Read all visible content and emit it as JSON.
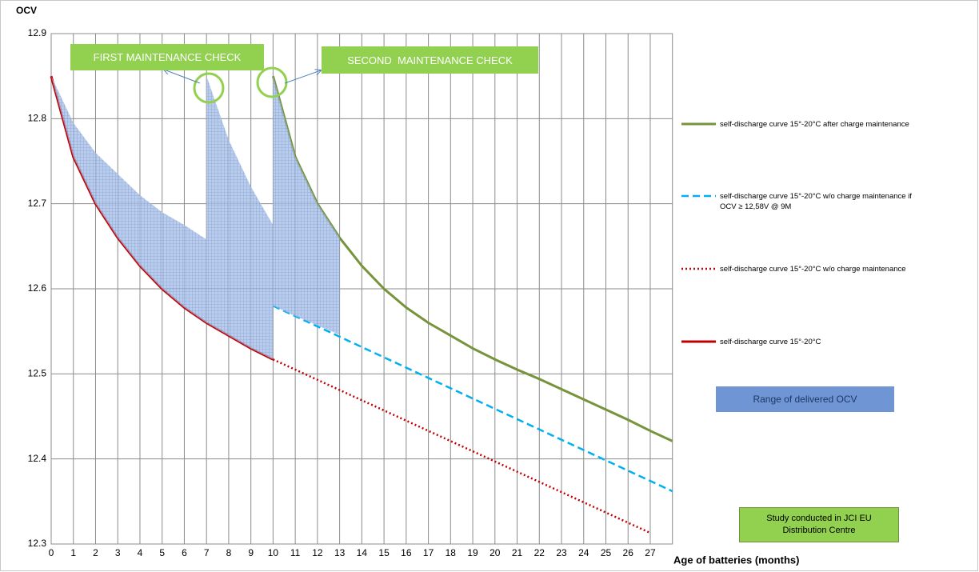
{
  "chart_data": {
    "type": "line",
    "y_label": "OCV",
    "x_label": "Age of batteries (months)",
    "xlim": [
      0,
      28
    ],
    "xticks": [
      0,
      1,
      2,
      3,
      4,
      5,
      6,
      7,
      8,
      9,
      10,
      11,
      12,
      13,
      14,
      15,
      16,
      17,
      18,
      19,
      20,
      21,
      22,
      23,
      24,
      25,
      26,
      27
    ],
    "ylim": [
      12.3,
      12.9
    ],
    "yticks": [
      12.3,
      12.4,
      12.5,
      12.6,
      12.7,
      12.8,
      12.9
    ],
    "grid": true,
    "series": [
      {
        "name": "self-discharge curve 15°-20°C after charge maintenance",
        "color": "#77933c",
        "style": "solid",
        "x": [
          10,
          11,
          12,
          13,
          14,
          15,
          16,
          17,
          18,
          19,
          20,
          21,
          22,
          23,
          24,
          25,
          26,
          27,
          28
        ],
        "values": [
          12.85,
          12.755,
          12.7,
          12.66,
          12.627,
          12.6,
          12.578,
          12.56,
          12.545,
          12.53,
          12.517,
          12.505,
          12.494,
          12.482,
          12.47,
          12.458,
          12.446,
          12.433,
          12.421
        ]
      },
      {
        "name": "self-discharge curve 15°-20°C w/o charge maintenance if OCV ≥ 12,58V @ 9M",
        "color": "#00b0f0",
        "style": "dashed",
        "x": [
          10,
          28
        ],
        "values": [
          12.58,
          12.362
        ]
      },
      {
        "name": "self-discharge curve 15°-20°C w/o charge maintenance",
        "color": "#c00000",
        "style": "dotted",
        "x": [
          10,
          27
        ],
        "values": [
          12.517,
          12.313
        ]
      },
      {
        "name": "self-discharge curve 15°-20°C",
        "color": "#c00000",
        "style": "solid",
        "x": [
          0,
          1,
          2,
          3,
          4,
          5,
          6,
          7,
          8,
          9,
          10
        ],
        "values": [
          12.85,
          12.755,
          12.7,
          12.66,
          12.627,
          12.6,
          12.578,
          12.56,
          12.545,
          12.53,
          12.517
        ]
      },
      {
        "name": "Range of delivered OCV",
        "color": "#6f95d4",
        "style": "area",
        "x": [
          0,
          1,
          2,
          3,
          4,
          5,
          6,
          7,
          7,
          8,
          9,
          10,
          10,
          11,
          12,
          13
        ],
        "upper": [
          12.85,
          12.795,
          12.76,
          12.735,
          12.71,
          12.69,
          12.675,
          12.658,
          12.85,
          12.775,
          12.72,
          12.675,
          12.85,
          12.755,
          12.7,
          12.66
        ],
        "lower": [
          12.85,
          12.755,
          12.7,
          12.66,
          12.627,
          12.6,
          12.578,
          12.56,
          12.56,
          12.545,
          12.53,
          12.517,
          12.58,
          12.568,
          12.557,
          12.546
        ]
      }
    ],
    "annotations": [
      "FIRST MAINTENANCE CHECK",
      "SECOND  MAINTENANCE CHECK",
      "Study conducted in JCI EU Distribution Centre"
    ]
  }
}
